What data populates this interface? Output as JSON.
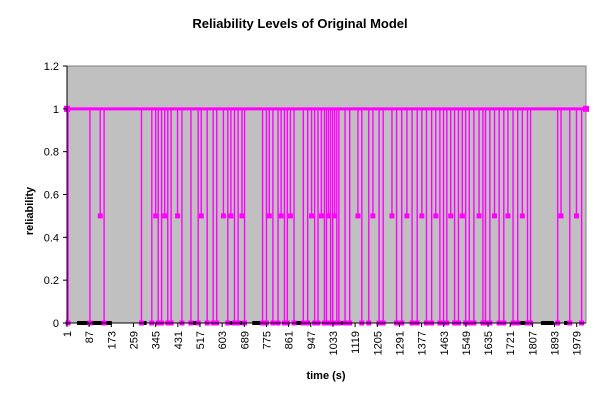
{
  "chart_data": {
    "type": "line",
    "title": "Reliability Levels of Original Model",
    "xlabel": "time (s)",
    "ylabel": "reliability",
    "xlim": [
      1,
      2015
    ],
    "ylim": [
      0,
      1.2
    ],
    "y_ticks": [
      0,
      0.2,
      0.4,
      0.6,
      0.8,
      1,
      1.2
    ],
    "y_tick_labels": [
      "0",
      "0.2",
      "0.4",
      "0.6",
      "0.8",
      "1",
      "1.2"
    ],
    "x_ticks": [
      1,
      87,
      173,
      259,
      345,
      431,
      517,
      603,
      689,
      775,
      861,
      947,
      1033,
      1119,
      1205,
      1291,
      1377,
      1463,
      1549,
      1635,
      1721,
      1807,
      1893,
      1979
    ],
    "x_tick_labels": [
      "1",
      "87",
      "173",
      "259",
      "345",
      "431",
      "517",
      "603",
      "689",
      "775",
      "861",
      "947",
      "1033",
      "1119",
      "1205",
      "1291",
      "1377",
      "1463",
      "1549",
      "1635",
      "1721",
      "1807",
      "1893",
      "1979"
    ],
    "grid": false,
    "legend": "none",
    "colors": {
      "plot_background": "#c0c0c0",
      "series": "#ff00ff",
      "markers": "#ff00ff",
      "baseline": "#000000"
    },
    "series": [
      {
        "drops": [
          {
            "t": 5,
            "level": 0
          },
          {
            "t": 90,
            "level": 0
          },
          {
            "t": 130,
            "level": 0.5
          },
          {
            "t": 145,
            "level": 0
          },
          {
            "t": 290,
            "level": 0
          },
          {
            "t": 330,
            "level": 0
          },
          {
            "t": 345,
            "level": 0.5
          },
          {
            "t": 355,
            "level": 0
          },
          {
            "t": 368,
            "level": 0
          },
          {
            "t": 380,
            "level": 0.5
          },
          {
            "t": 392,
            "level": 0
          },
          {
            "t": 405,
            "level": 0
          },
          {
            "t": 430,
            "level": 0.5
          },
          {
            "t": 447,
            "level": 0
          },
          {
            "t": 482,
            "level": 0
          },
          {
            "t": 510,
            "level": 0
          },
          {
            "t": 522,
            "level": 0.5
          },
          {
            "t": 545,
            "level": 0
          },
          {
            "t": 568,
            "level": 0
          },
          {
            "t": 582,
            "level": 0
          },
          {
            "t": 608,
            "level": 0.5
          },
          {
            "t": 625,
            "level": 0
          },
          {
            "t": 637,
            "level": 0.5
          },
          {
            "t": 651,
            "level": 0
          },
          {
            "t": 665,
            "level": 0
          },
          {
            "t": 680,
            "level": 0.5
          },
          {
            "t": 690,
            "level": 0
          },
          {
            "t": 760,
            "level": 0
          },
          {
            "t": 775,
            "level": 0
          },
          {
            "t": 786,
            "level": 0.5
          },
          {
            "t": 800,
            "level": 0
          },
          {
            "t": 820,
            "level": 0
          },
          {
            "t": 832,
            "level": 0.5
          },
          {
            "t": 845,
            "level": 0
          },
          {
            "t": 856,
            "level": 0
          },
          {
            "t": 868,
            "level": 0.5
          },
          {
            "t": 882,
            "level": 0
          },
          {
            "t": 918,
            "level": 0
          },
          {
            "t": 935,
            "level": 0
          },
          {
            "t": 950,
            "level": 0.5
          },
          {
            "t": 962,
            "level": 0
          },
          {
            "t": 975,
            "level": 0
          },
          {
            "t": 988,
            "level": 0.5
          },
          {
            "t": 1000,
            "level": 0
          },
          {
            "t": 1008,
            "level": 0
          },
          {
            "t": 1016,
            "level": 0.5
          },
          {
            "t": 1024,
            "level": 0
          },
          {
            "t": 1032,
            "level": 0
          },
          {
            "t": 1040,
            "level": 0.5
          },
          {
            "t": 1048,
            "level": 0
          },
          {
            "t": 1056,
            "level": 0
          },
          {
            "t": 1080,
            "level": 0
          },
          {
            "t": 1098,
            "level": 0
          },
          {
            "t": 1130,
            "level": 0.5
          },
          {
            "t": 1145,
            "level": 0
          },
          {
            "t": 1172,
            "level": 0
          },
          {
            "t": 1188,
            "level": 0.5
          },
          {
            "t": 1212,
            "level": 0
          },
          {
            "t": 1228,
            "level": 0
          },
          {
            "t": 1262,
            "level": 0.5
          },
          {
            "t": 1280,
            "level": 0
          },
          {
            "t": 1300,
            "level": 0
          },
          {
            "t": 1320,
            "level": 0.5
          },
          {
            "t": 1340,
            "level": 0
          },
          {
            "t": 1360,
            "level": 0
          },
          {
            "t": 1378,
            "level": 0.5
          },
          {
            "t": 1396,
            "level": 0
          },
          {
            "t": 1416,
            "level": 0
          },
          {
            "t": 1432,
            "level": 0.5
          },
          {
            "t": 1448,
            "level": 0
          },
          {
            "t": 1462,
            "level": 0
          },
          {
            "t": 1475,
            "level": 0
          },
          {
            "t": 1490,
            "level": 0.5
          },
          {
            "t": 1505,
            "level": 0
          },
          {
            "t": 1520,
            "level": 0
          },
          {
            "t": 1535,
            "level": 0.5
          },
          {
            "t": 1548,
            "level": 0
          },
          {
            "t": 1562,
            "level": 0
          },
          {
            "t": 1580,
            "level": 0
          },
          {
            "t": 1600,
            "level": 0.5
          },
          {
            "t": 1615,
            "level": 0
          },
          {
            "t": 1625,
            "level": 0
          },
          {
            "t": 1642,
            "level": 0
          },
          {
            "t": 1660,
            "level": 0.5
          },
          {
            "t": 1678,
            "level": 0
          },
          {
            "t": 1696,
            "level": 0
          },
          {
            "t": 1712,
            "level": 0.5
          },
          {
            "t": 1732,
            "level": 0
          },
          {
            "t": 1750,
            "level": 0
          },
          {
            "t": 1768,
            "level": 0.5
          },
          {
            "t": 1788,
            "level": 0
          },
          {
            "t": 1800,
            "level": 0
          },
          {
            "t": 1905,
            "level": 0
          },
          {
            "t": 1918,
            "level": 0.5
          },
          {
            "t": 1952,
            "level": 0
          },
          {
            "t": 1978,
            "level": 0.5
          },
          {
            "t": 1998,
            "level": 0
          }
        ],
        "baseline_segments": [
          [
            1,
            10
          ],
          [
            40,
            175
          ],
          [
            295,
            310
          ],
          [
            475,
            510
          ],
          [
            635,
            690
          ],
          [
            720,
            780
          ],
          [
            890,
            935
          ],
          [
            1060,
            1085
          ],
          [
            1610,
            1640
          ],
          [
            1760,
            1800
          ],
          [
            1840,
            1890
          ],
          [
            1930,
            1960
          ]
        ]
      }
    ]
  }
}
